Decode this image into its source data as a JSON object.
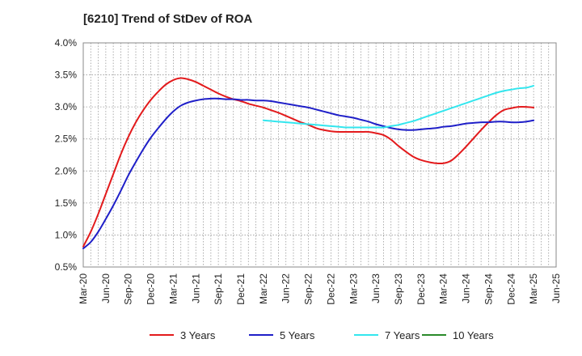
{
  "chart_data": {
    "type": "line",
    "title": "[6210]  Trend of StDev of ROA",
    "xlabel": "",
    "ylabel": "",
    "ylim": [
      0.5,
      4.0
    ],
    "y_ticks": [
      "4.0%",
      "3.5%",
      "3.0%",
      "2.5%",
      "2.0%",
      "1.5%",
      "1.0%",
      "0.5%"
    ],
    "y_tick_values": [
      4.0,
      3.5,
      3.0,
      2.5,
      2.0,
      1.5,
      1.0,
      0.5
    ],
    "x_ticks": [
      "Mar-20",
      "Jun-20",
      "Sep-20",
      "Dec-20",
      "Mar-21",
      "Jun-21",
      "Sep-21",
      "Dec-21",
      "Mar-22",
      "Jun-22",
      "Sep-22",
      "Dec-22",
      "Mar-23",
      "Jun-23",
      "Sep-23",
      "Dec-23",
      "Mar-24",
      "Jun-24",
      "Sep-24",
      "Dec-24",
      "Mar-25",
      "Jun-25"
    ],
    "grid": true,
    "legend_position": "bottom",
    "series": [
      {
        "name": "3 Years",
        "color": "#e31a1c",
        "x": [
          "Mar-20",
          "Apr-20",
          "May-20",
          "Jun-20",
          "Jul-20",
          "Aug-20",
          "Sep-20",
          "Oct-20",
          "Nov-20",
          "Dec-20",
          "Jan-21",
          "Feb-21",
          "Mar-21",
          "Apr-21",
          "May-21",
          "Jun-21",
          "Jul-21",
          "Aug-21",
          "Sep-21",
          "Oct-21",
          "Nov-21",
          "Dec-21",
          "Jan-22",
          "Feb-22",
          "Mar-22",
          "Apr-22",
          "May-22",
          "Jun-22",
          "Jul-22",
          "Aug-22",
          "Sep-22",
          "Oct-22",
          "Nov-22",
          "Dec-22",
          "Jan-23",
          "Feb-23",
          "Mar-23",
          "Apr-23",
          "May-23",
          "Jun-23",
          "Jul-23",
          "Aug-23",
          "Sep-23",
          "Oct-23",
          "Nov-23",
          "Dec-23",
          "Jan-24",
          "Feb-24",
          "Mar-24",
          "Apr-24",
          "May-24",
          "Jun-24",
          "Jul-24",
          "Aug-24",
          "Sep-24",
          "Oct-24",
          "Nov-24",
          "Dec-24",
          "Jan-25",
          "Feb-25",
          "Mar-25"
        ],
        "values": [
          0.82,
          1.05,
          1.33,
          1.64,
          1.95,
          2.26,
          2.53,
          2.76,
          2.95,
          3.11,
          3.24,
          3.35,
          3.42,
          3.45,
          3.43,
          3.39,
          3.33,
          3.27,
          3.21,
          3.16,
          3.12,
          3.09,
          3.05,
          3.02,
          2.99,
          2.95,
          2.91,
          2.86,
          2.81,
          2.76,
          2.72,
          2.67,
          2.64,
          2.62,
          2.61,
          2.61,
          2.61,
          2.61,
          2.61,
          2.59,
          2.56,
          2.49,
          2.39,
          2.3,
          2.22,
          2.17,
          2.14,
          2.12,
          2.12,
          2.16,
          2.26,
          2.38,
          2.51,
          2.64,
          2.76,
          2.87,
          2.95,
          2.98,
          3.0,
          3.0,
          2.99
        ]
      },
      {
        "name": "5 Years",
        "color": "#1f1fc8",
        "x": [
          "Mar-20",
          "Apr-20",
          "May-20",
          "Jun-20",
          "Jul-20",
          "Aug-20",
          "Sep-20",
          "Oct-20",
          "Nov-20",
          "Dec-20",
          "Jan-21",
          "Feb-21",
          "Mar-21",
          "Apr-21",
          "May-21",
          "Jun-21",
          "Jul-21",
          "Aug-21",
          "Sep-21",
          "Oct-21",
          "Nov-21",
          "Dec-21",
          "Jan-22",
          "Feb-22",
          "Mar-22",
          "Apr-22",
          "May-22",
          "Jun-22",
          "Jul-22",
          "Aug-22",
          "Sep-22",
          "Oct-22",
          "Nov-22",
          "Dec-22",
          "Jan-23",
          "Feb-23",
          "Mar-23",
          "Apr-23",
          "May-23",
          "Jun-23",
          "Jul-23",
          "Aug-23",
          "Sep-23",
          "Oct-23",
          "Nov-23",
          "Dec-23",
          "Jan-24",
          "Feb-24",
          "Mar-24",
          "Apr-24",
          "May-24",
          "Jun-24",
          "Jul-24",
          "Aug-24",
          "Sep-24",
          "Oct-24",
          "Nov-24",
          "Dec-24",
          "Jan-25",
          "Feb-25",
          "Mar-25"
        ],
        "values": [
          0.79,
          0.89,
          1.05,
          1.25,
          1.46,
          1.69,
          1.93,
          2.14,
          2.34,
          2.52,
          2.67,
          2.81,
          2.93,
          3.02,
          3.07,
          3.1,
          3.12,
          3.13,
          3.13,
          3.12,
          3.12,
          3.11,
          3.11,
          3.1,
          3.1,
          3.09,
          3.07,
          3.05,
          3.03,
          3.01,
          2.99,
          2.96,
          2.93,
          2.9,
          2.87,
          2.85,
          2.83,
          2.8,
          2.77,
          2.73,
          2.7,
          2.67,
          2.65,
          2.64,
          2.64,
          2.65,
          2.66,
          2.67,
          2.69,
          2.7,
          2.72,
          2.74,
          2.75,
          2.76,
          2.76,
          2.77,
          2.77,
          2.76,
          2.76,
          2.77,
          2.79
        ]
      },
      {
        "name": "7 Years",
        "color": "#33e6ee",
        "x": [
          "Mar-22",
          "Apr-22",
          "May-22",
          "Jun-22",
          "Jul-22",
          "Aug-22",
          "Sep-22",
          "Oct-22",
          "Nov-22",
          "Dec-22",
          "Jan-23",
          "Feb-23",
          "Mar-23",
          "Apr-23",
          "May-23",
          "Jun-23",
          "Jul-23",
          "Aug-23",
          "Sep-23",
          "Oct-23",
          "Nov-23",
          "Dec-23",
          "Jan-24",
          "Feb-24",
          "Mar-24",
          "Apr-24",
          "May-24",
          "Jun-24",
          "Jul-24",
          "Aug-24",
          "Sep-24",
          "Oct-24",
          "Nov-24",
          "Dec-24",
          "Jan-25",
          "Feb-25",
          "Mar-25"
        ],
        "values": [
          2.79,
          2.78,
          2.77,
          2.76,
          2.75,
          2.74,
          2.73,
          2.72,
          2.71,
          2.7,
          2.69,
          2.68,
          2.68,
          2.68,
          2.68,
          2.68,
          2.68,
          2.7,
          2.72,
          2.75,
          2.78,
          2.82,
          2.86,
          2.9,
          2.94,
          2.98,
          3.02,
          3.06,
          3.1,
          3.14,
          3.18,
          3.22,
          3.25,
          3.27,
          3.29,
          3.3,
          3.33
        ]
      },
      {
        "name": "10 Years",
        "color": "#2a8a2a",
        "x": [],
        "values": []
      }
    ]
  }
}
